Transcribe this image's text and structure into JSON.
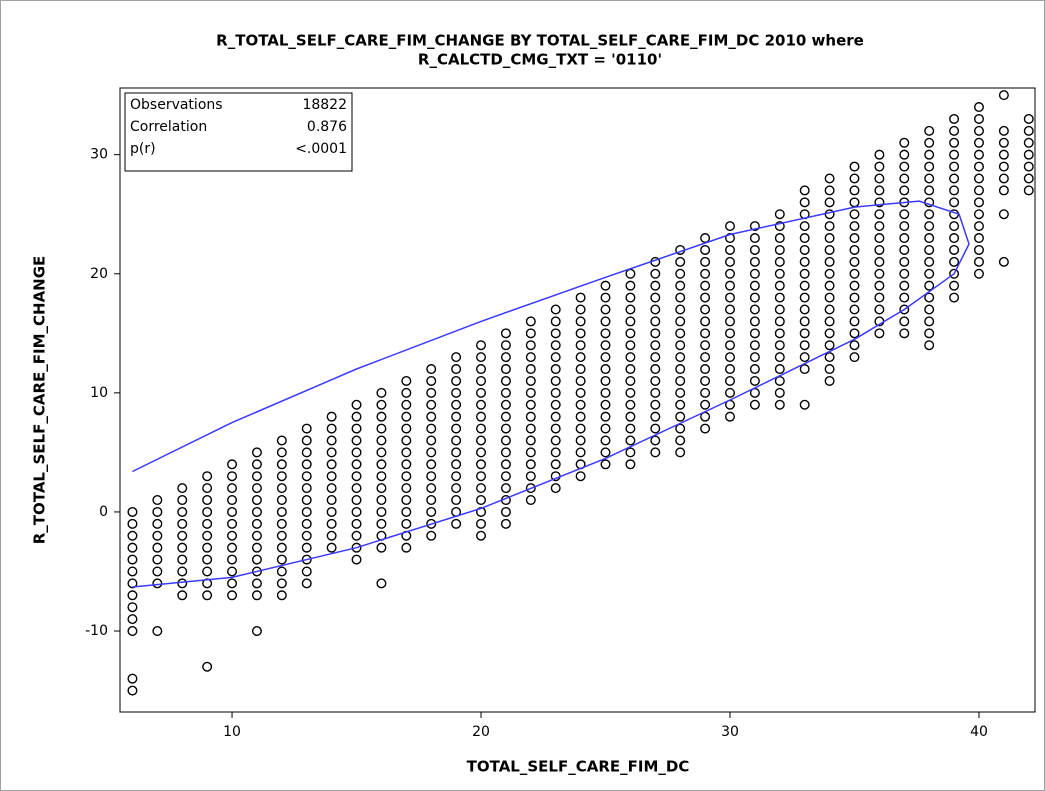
{
  "chart_data": {
    "type": "scatter",
    "title": [
      "R_TOTAL_SELF_CARE_FIM_CHANGE BY TOTAL_SELF_CARE_FIM_DC 2010 where",
      "R_CALCTD_CMG_TXT = '0110'"
    ],
    "xlabel": "TOTAL_SELF_CARE_FIM_DC",
    "ylabel": "R_TOTAL_SELF_CARE_FIM_CHANGE",
    "xlim": [
      5.5,
      42.25
    ],
    "ylim": [
      -16.8,
      35.6
    ],
    "xticks": [
      10,
      20,
      30,
      40
    ],
    "yticks": [
      -10,
      0,
      10,
      20,
      30
    ],
    "marker_color": "#000000",
    "inset": [
      [
        "Observations",
        "18822"
      ],
      [
        "Correlation",
        "0.876"
      ],
      [
        "p(r)",
        "<.0001"
      ]
    ],
    "points": [
      {
        "x": 6,
        "y": [
          0,
          -1,
          -2,
          -3,
          -4,
          -5,
          -6,
          -7,
          -8,
          -9,
          -10,
          -14,
          -15
        ]
      },
      {
        "x": 7,
        "y": [
          1,
          0,
          -1,
          -2,
          -3,
          -4,
          -5,
          -6,
          -10
        ]
      },
      {
        "x": 8,
        "y": [
          2,
          1,
          0,
          -1,
          -2,
          -3,
          -4,
          -5,
          -6,
          -7
        ]
      },
      {
        "x": 9,
        "y": [
          3,
          2,
          1,
          0,
          -1,
          -2,
          -3,
          -4,
          -5,
          -6,
          -7,
          -13
        ]
      },
      {
        "x": 10,
        "y": [
          4,
          3,
          2,
          1,
          0,
          -1,
          -2,
          -3,
          -4,
          -5,
          -6,
          -7
        ]
      },
      {
        "x": 11,
        "y": [
          5,
          4,
          3,
          2,
          1,
          0,
          -1,
          -2,
          -3,
          -4,
          -5,
          -6,
          -7,
          -10
        ]
      },
      {
        "x": 12,
        "y": [
          6,
          5,
          4,
          3,
          2,
          1,
          0,
          -1,
          -2,
          -3,
          -4,
          -5,
          -6,
          -7
        ]
      },
      {
        "x": 13,
        "y": [
          7,
          6,
          5,
          4,
          3,
          2,
          1,
          0,
          -1,
          -2,
          -3,
          -4,
          -5,
          -6
        ]
      },
      {
        "x": 14,
        "y": [
          8,
          7,
          6,
          5,
          4,
          3,
          2,
          1,
          0,
          -1,
          -2,
          -3
        ]
      },
      {
        "x": 15,
        "y": [
          9,
          8,
          7,
          6,
          5,
          4,
          3,
          2,
          1,
          0,
          -1,
          -2,
          -3,
          -4
        ]
      },
      {
        "x": 16,
        "y": [
          10,
          9,
          8,
          7,
          6,
          5,
          4,
          3,
          2,
          1,
          0,
          -1,
          -2,
          -3,
          -6
        ]
      },
      {
        "x": 17,
        "y": [
          11,
          10,
          9,
          8,
          7,
          6,
          5,
          4,
          3,
          2,
          1,
          0,
          -1,
          -2,
          -3
        ]
      },
      {
        "x": 18,
        "y": [
          12,
          11,
          10,
          9,
          8,
          7,
          6,
          5,
          4,
          3,
          2,
          1,
          0,
          -1,
          -2
        ]
      },
      {
        "x": 19,
        "y": [
          13,
          12,
          11,
          10,
          9,
          8,
          7,
          6,
          5,
          4,
          3,
          2,
          1,
          0,
          -1
        ]
      },
      {
        "x": 20,
        "y": [
          14,
          13,
          12,
          11,
          10,
          9,
          8,
          7,
          6,
          5,
          4,
          3,
          2,
          1,
          0,
          -1,
          -2
        ]
      },
      {
        "x": 21,
        "y": [
          15,
          14,
          13,
          12,
          11,
          10,
          9,
          8,
          7,
          6,
          5,
          4,
          3,
          2,
          1,
          0,
          -1
        ]
      },
      {
        "x": 22,
        "y": [
          16,
          15,
          14,
          13,
          12,
          11,
          10,
          9,
          8,
          7,
          6,
          5,
          4,
          3,
          2,
          1
        ]
      },
      {
        "x": 23,
        "y": [
          17,
          16,
          15,
          14,
          13,
          12,
          11,
          10,
          9,
          8,
          7,
          6,
          5,
          4,
          3,
          2
        ]
      },
      {
        "x": 24,
        "y": [
          18,
          17,
          16,
          15,
          14,
          13,
          12,
          11,
          10,
          9,
          8,
          7,
          6,
          5,
          4,
          3
        ]
      },
      {
        "x": 25,
        "y": [
          19,
          18,
          17,
          16,
          15,
          14,
          13,
          12,
          11,
          10,
          9,
          8,
          7,
          6,
          5,
          4
        ]
      },
      {
        "x": 26,
        "y": [
          20,
          19,
          18,
          17,
          16,
          15,
          14,
          13,
          12,
          11,
          10,
          9,
          8,
          7,
          6,
          5,
          4
        ]
      },
      {
        "x": 27,
        "y": [
          21,
          20,
          19,
          18,
          17,
          16,
          15,
          14,
          13,
          12,
          11,
          10,
          9,
          8,
          7,
          6,
          5
        ]
      },
      {
        "x": 28,
        "y": [
          22,
          21,
          20,
          19,
          18,
          17,
          16,
          15,
          14,
          13,
          12,
          11,
          10,
          9,
          8,
          7,
          6,
          5
        ]
      },
      {
        "x": 29,
        "y": [
          23,
          22,
          21,
          20,
          19,
          18,
          17,
          16,
          15,
          14,
          13,
          12,
          11,
          10,
          9,
          8,
          7
        ]
      },
      {
        "x": 30,
        "y": [
          24,
          23,
          22,
          21,
          20,
          19,
          18,
          17,
          16,
          15,
          14,
          13,
          12,
          11,
          10,
          9,
          8
        ]
      },
      {
        "x": 31,
        "y": [
          24,
          23,
          22,
          21,
          20,
          19,
          18,
          17,
          16,
          15,
          14,
          13,
          12,
          11,
          10,
          9
        ]
      },
      {
        "x": 32,
        "y": [
          25,
          24,
          23,
          22,
          21,
          20,
          19,
          18,
          17,
          16,
          15,
          14,
          13,
          12,
          11,
          10,
          9
        ]
      },
      {
        "x": 33,
        "y": [
          27,
          26,
          25,
          24,
          23,
          22,
          21,
          20,
          19,
          18,
          17,
          16,
          15,
          14,
          13,
          12,
          9
        ]
      },
      {
        "x": 34,
        "y": [
          28,
          27,
          26,
          25,
          24,
          23,
          22,
          21,
          20,
          19,
          18,
          17,
          16,
          15,
          14,
          13,
          12,
          11
        ]
      },
      {
        "x": 35,
        "y": [
          29,
          28,
          27,
          26,
          25,
          24,
          23,
          22,
          21,
          20,
          19,
          18,
          17,
          16,
          15,
          14,
          13
        ]
      },
      {
        "x": 36,
        "y": [
          30,
          29,
          28,
          27,
          26,
          25,
          24,
          23,
          22,
          21,
          20,
          19,
          18,
          17,
          16,
          15
        ]
      },
      {
        "x": 37,
        "y": [
          31,
          30,
          29,
          28,
          27,
          26,
          25,
          24,
          23,
          22,
          21,
          20,
          19,
          18,
          17,
          16,
          15
        ]
      },
      {
        "x": 38,
        "y": [
          32,
          31,
          30,
          29,
          28,
          27,
          26,
          25,
          24,
          23,
          22,
          21,
          20,
          19,
          18,
          17,
          16,
          15,
          14
        ]
      },
      {
        "x": 39,
        "y": [
          33,
          32,
          31,
          30,
          29,
          28,
          27,
          26,
          25,
          24,
          23,
          22,
          21,
          20,
          19,
          18
        ]
      },
      {
        "x": 40,
        "y": [
          34,
          33,
          32,
          31,
          30,
          29,
          28,
          27,
          26,
          25,
          24,
          23,
          22,
          21,
          20
        ]
      },
      {
        "x": 41,
        "y": [
          35,
          32,
          31,
          30,
          29,
          28,
          27,
          25,
          21
        ]
      },
      {
        "x": 42,
        "y": [
          33,
          32,
          31,
          30,
          29,
          28,
          27
        ]
      }
    ],
    "ellipse": {
      "color": "#3a3aff",
      "x": [
        6,
        10,
        15,
        20,
        25,
        30,
        35,
        37.6,
        39.2,
        39.6,
        39,
        37,
        35,
        30,
        25,
        20,
        15,
        10,
        6
      ],
      "y": [
        3.4,
        7.5,
        12,
        16,
        19.7,
        23.3,
        25.6,
        26.1,
        25,
        22.5,
        20,
        17,
        14.5,
        9.4,
        4.5,
        0.3,
        -3,
        -5.5,
        -6.3
      ]
    }
  }
}
